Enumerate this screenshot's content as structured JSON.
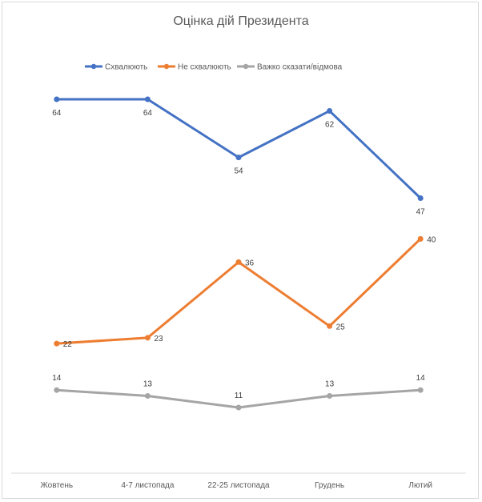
{
  "chart_data": {
    "type": "line",
    "title": "Оцінка дій Президента",
    "xlabel": "",
    "ylabel": "",
    "ylim": [
      5,
      70
    ],
    "grid": false,
    "legend_position": "top",
    "categories": [
      "Жовтень",
      "4-7 листопада",
      "22-25 листопада",
      "Грудень",
      "Лютий"
    ],
    "series": [
      {
        "name": "Схвалюють",
        "color": "#4472c4",
        "values": [
          64,
          64,
          54,
          62,
          47
        ]
      },
      {
        "name": "Не схвалюють",
        "color": "#ed7d31",
        "values": [
          22,
          23,
          36,
          25,
          40
        ]
      },
      {
        "name": "Важко сказати/відмова",
        "color": "#a5a5a5",
        "values": [
          14,
          13,
          11,
          13,
          14
        ]
      }
    ]
  }
}
